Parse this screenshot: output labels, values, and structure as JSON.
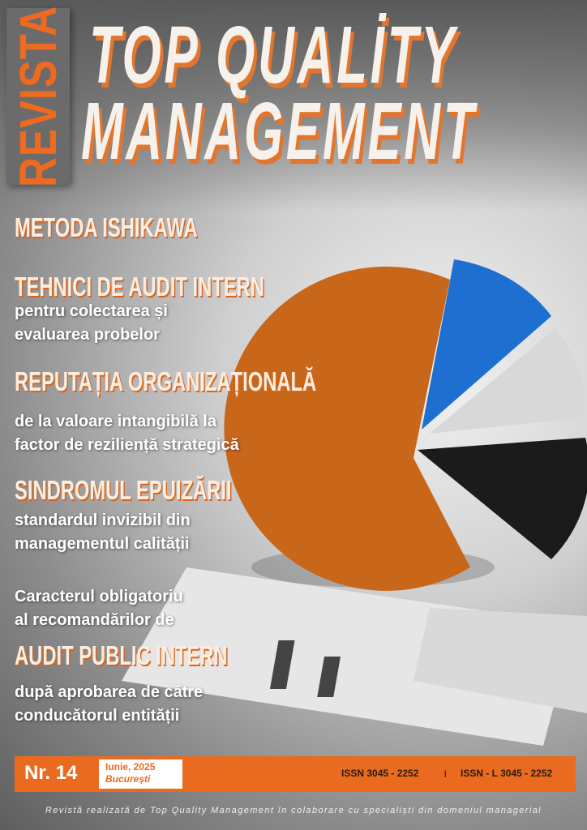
{
  "masthead": {
    "revista": "REVISTA",
    "title_line1": "TOP QUALİTY",
    "title_line2": "MANAGEMENT"
  },
  "articles": [
    {
      "headline": "METODA ISHIKAWA"
    },
    {
      "headline": "TEHNICI DE AUDIT INTERN",
      "subtitle": [
        "pentru colectarea și",
        "evaluarea probelor"
      ]
    },
    {
      "headline": "REPUTAȚIA ORGANIZAȚIONALĂ",
      "subtitle": [
        "de la valoare intangibilă la",
        "factor de reziliență strategică"
      ]
    },
    {
      "headline": "SINDROMUL EPUIZĂRII",
      "subtitle": [
        "standardul invizibil din",
        "managementul calității"
      ]
    },
    {
      "pre": [
        "Caracterul obligatoriu",
        "al recomandărilor de"
      ],
      "headline": "AUDIT PUBLIC INTERN",
      "subtitle": [
        "după aprobarea de către",
        "conducătorul entității"
      ]
    }
  ],
  "issue": {
    "number": "Nr. 14",
    "date": "Iunie, 2025",
    "city": "București",
    "issn": "ISSN 3045 - 2252",
    "separator": "|",
    "issn_l": "ISSN - L  3045 - 2252"
  },
  "footer": "Revistă realizată de Top Quality Management în colaborare cu specialiști din domeniul managerial",
  "colors": {
    "accent": "#ea6b20",
    "pie_orange": "#c8661a",
    "pie_blue": "#1f6fd1",
    "pie_dark": "#1b1b1b"
  }
}
